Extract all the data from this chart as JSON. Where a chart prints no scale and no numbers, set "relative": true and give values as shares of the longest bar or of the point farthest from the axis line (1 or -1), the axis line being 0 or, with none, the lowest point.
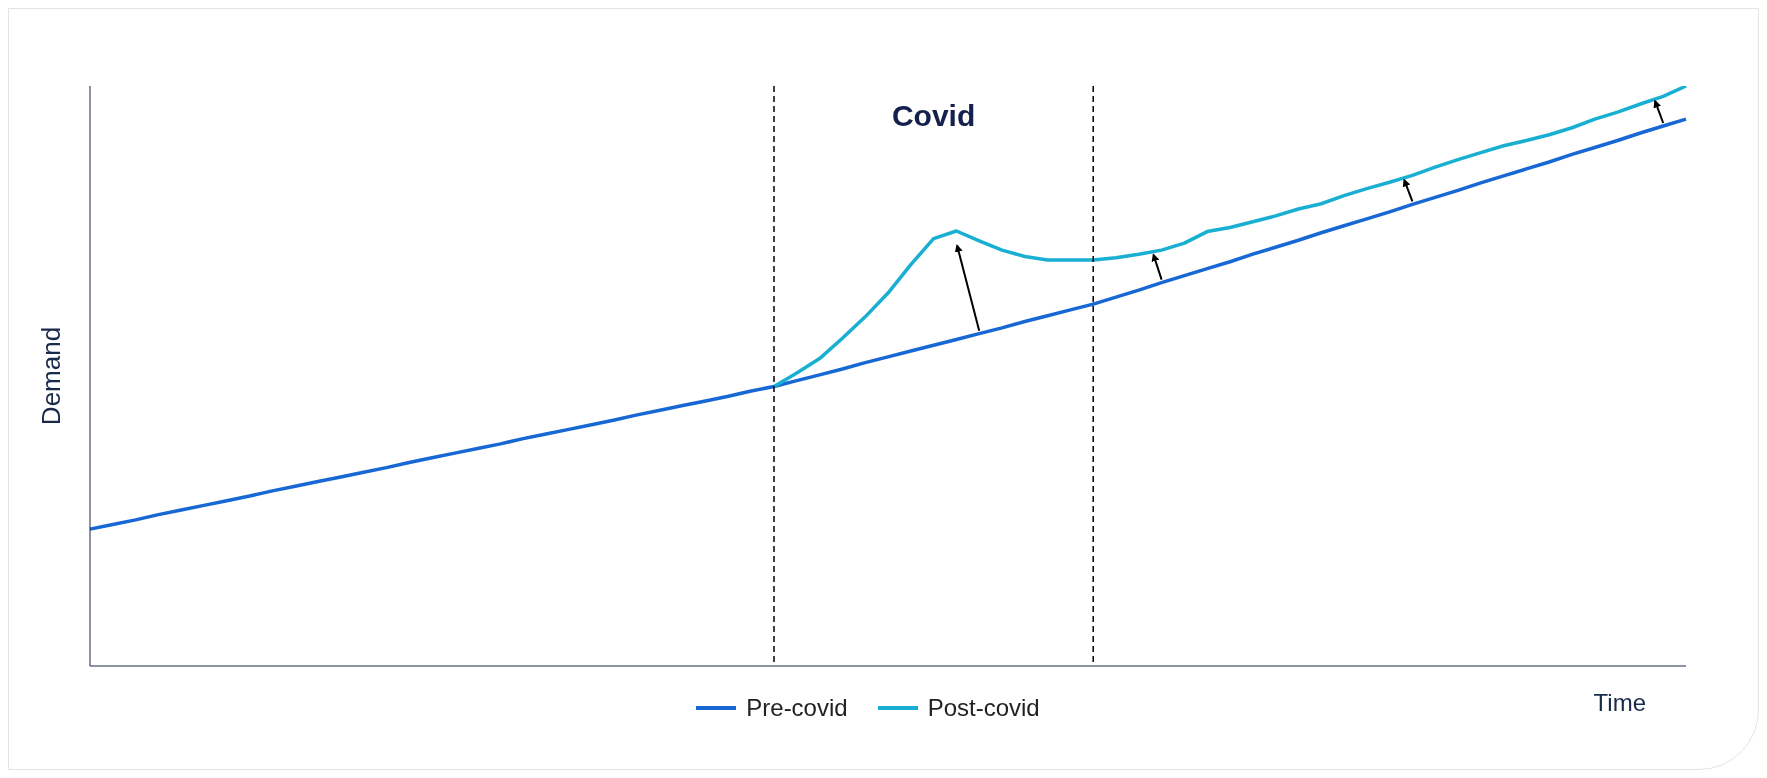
{
  "chart_data": {
    "type": "line",
    "relative": true,
    "xlabel": "Time",
    "ylabel": "Demand",
    "legend": "bottom",
    "marker": "none",
    "line_style": "solid",
    "grid": false,
    "categories": [
      null,
      null,
      null,
      null,
      null,
      null,
      null,
      null,
      null,
      null,
      null,
      null,
      null,
      null,
      null,
      null,
      null,
      null,
      null,
      null,
      null,
      null,
      null,
      null,
      null,
      null,
      null,
      null,
      null,
      null,
      null,
      null,
      null,
      null,
      null,
      null,
      null,
      null,
      null,
      null,
      null,
      null,
      null,
      null,
      null,
      null,
      null,
      null,
      null,
      null,
      null,
      null,
      null,
      null,
      null,
      null,
      null,
      null,
      null,
      null,
      null,
      null,
      null,
      null,
      null,
      null,
      null,
      null,
      null,
      null,
      null
    ],
    "series": [
      {
        "name": "Pre-covid",
        "color": "#1768d4",
        "values": [
          0.236,
          0.244,
          0.252,
          0.261,
          0.269,
          0.277,
          0.285,
          0.293,
          0.302,
          0.31,
          0.318,
          0.326,
          0.334,
          0.342,
          0.351,
          0.359,
          0.367,
          0.375,
          0.383,
          0.392,
          0.4,
          0.408,
          0.416,
          0.424,
          0.433,
          0.441,
          0.449,
          0.457,
          0.465,
          0.474,
          0.482,
          0.492,
          0.502,
          0.512,
          0.523,
          0.533,
          0.543,
          0.553,
          0.563,
          0.573,
          0.583,
          0.594,
          0.604,
          0.614,
          0.624,
          0.636,
          0.648,
          0.661,
          0.673,
          0.685,
          0.697,
          0.71,
          0.722,
          0.734,
          0.747,
          0.759,
          0.771,
          0.783,
          0.796,
          0.808,
          0.82,
          0.833,
          0.845,
          0.857,
          0.869,
          0.882,
          0.894,
          0.906,
          0.919,
          0.931,
          0.943
        ]
      },
      {
        "name": "Post-covid",
        "color": "#19afd3",
        "values": [
          null,
          null,
          null,
          null,
          null,
          null,
          null,
          null,
          null,
          null,
          null,
          null,
          null,
          null,
          null,
          null,
          null,
          null,
          null,
          null,
          null,
          null,
          null,
          null,
          null,
          null,
          null,
          null,
          null,
          null,
          0.482,
          0.505,
          0.53,
          0.565,
          0.602,
          0.643,
          0.692,
          0.737,
          0.75,
          0.733,
          0.717,
          0.706,
          0.7,
          0.7,
          0.7,
          0.704,
          0.71,
          0.717,
          0.729,
          0.749,
          0.756,
          0.766,
          0.776,
          0.788,
          0.797,
          0.811,
          0.823,
          0.834,
          0.846,
          0.86,
          0.873,
          0.885,
          0.897,
          0.906,
          0.916,
          0.928,
          0.943,
          0.955,
          0.969,
          0.982,
          1.0
        ]
      }
    ],
    "annotations": [
      "Covid"
    ]
  }
}
